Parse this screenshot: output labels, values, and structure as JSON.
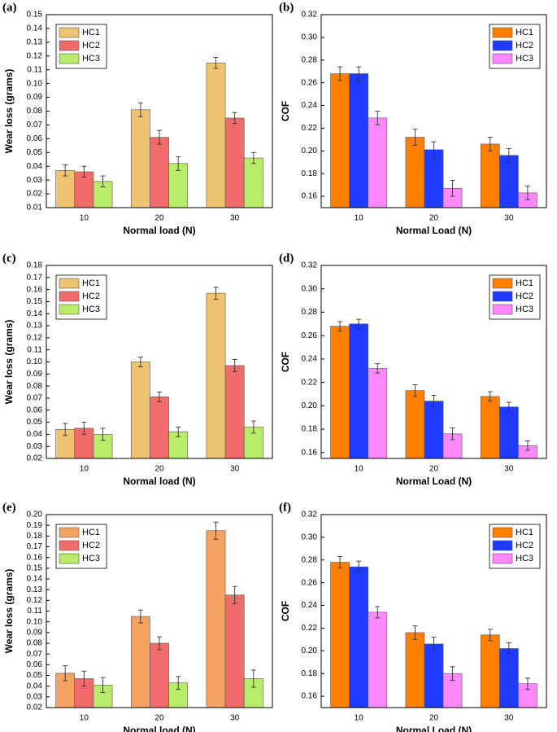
{
  "chart_data": [
    {
      "type": "bar",
      "label": "(a)",
      "xlabel": "Normal load (N)",
      "ylabel": "Wear loss (grams)",
      "legend": "upper left",
      "categories": [
        "10",
        "20",
        "30"
      ],
      "ylim": [
        0.01,
        0.15
      ],
      "yticks": [
        0.01,
        0.02,
        0.03,
        0.04,
        0.05,
        0.06,
        0.07,
        0.08,
        0.09,
        {
          "value": 0.1,
          "label": "0.10"
        },
        0.11,
        0.12,
        0.13,
        0.14,
        0.15
      ],
      "series": [
        {
          "name": "HC1",
          "color": "#eec472",
          "values": [
            0.037,
            0.081,
            0.115
          ],
          "errors": [
            0.004,
            0.005,
            0.004
          ]
        },
        {
          "name": "HC2",
          "color": "#f26b6b",
          "values": [
            0.036,
            0.061,
            0.075
          ],
          "errors": [
            0.004,
            0.005,
            0.004
          ]
        },
        {
          "name": "HC3",
          "color": "#b9ec6a",
          "values": [
            0.029,
            0.042,
            0.046
          ],
          "errors": [
            0.004,
            0.005,
            0.004
          ]
        }
      ]
    },
    {
      "type": "bar",
      "label": "(b)",
      "xlabel": "Normal Load (N)",
      "ylabel": "COF",
      "legend": "upper right",
      "categories": [
        "10",
        "20",
        "30"
      ],
      "ylim": [
        0.15,
        0.32
      ],
      "yticks": [
        0.16,
        0.18,
        {
          "value": 0.2,
          "label": "0.20"
        },
        0.22,
        0.24,
        0.26,
        0.28,
        {
          "value": 0.3,
          "label": "0.30"
        },
        0.32
      ],
      "series": [
        {
          "name": "HC1",
          "color": "#ff8000",
          "values": [
            0.268,
            0.212,
            0.206
          ],
          "errors": [
            0.006,
            0.007,
            0.006
          ]
        },
        {
          "name": "HC2",
          "color": "#1f3bff",
          "values": [
            0.268,
            0.201,
            0.196
          ],
          "errors": [
            0.006,
            0.007,
            0.006
          ]
        },
        {
          "name": "HC3",
          "color": "#ff88ff",
          "values": [
            0.229,
            0.167,
            0.163
          ],
          "errors": [
            0.006,
            0.007,
            0.006
          ]
        }
      ]
    },
    {
      "type": "bar",
      "label": "(c)",
      "xlabel": "Normal load (N)",
      "ylabel": "Wear loss (grams)",
      "legend": "upper left",
      "categories": [
        "10",
        "20",
        "30"
      ],
      "ylim": [
        0.02,
        0.18
      ],
      "yticks": [
        0.02,
        0.03,
        0.04,
        0.05,
        0.06,
        0.07,
        0.08,
        0.09,
        {
          "value": 0.1,
          "label": "0.10"
        },
        0.11,
        0.12,
        0.13,
        0.14,
        0.15,
        0.16,
        0.17,
        0.18
      ],
      "series": [
        {
          "name": "HC1",
          "color": "#eec472",
          "values": [
            0.044,
            0.1,
            0.157
          ],
          "errors": [
            0.005,
            0.004,
            0.005
          ]
        },
        {
          "name": "HC2",
          "color": "#f26b6b",
          "values": [
            0.045,
            0.071,
            0.097
          ],
          "errors": [
            0.005,
            0.004,
            0.005
          ]
        },
        {
          "name": "HC3",
          "color": "#b9ec6a",
          "values": [
            0.04,
            0.042,
            0.046
          ],
          "errors": [
            0.005,
            0.004,
            0.005
          ]
        }
      ]
    },
    {
      "type": "bar",
      "label": "(d)",
      "xlabel": "Normal Load (N)",
      "ylabel": "COF",
      "legend": "upper right",
      "categories": [
        "10",
        "20",
        "30"
      ],
      "ylim": [
        0.155,
        0.32
      ],
      "yticks": [
        0.16,
        0.18,
        {
          "value": 0.2,
          "label": "0.20"
        },
        0.22,
        0.24,
        0.26,
        0.28,
        {
          "value": 0.3,
          "label": "0.30"
        },
        0.32
      ],
      "series": [
        {
          "name": "HC1",
          "color": "#ff8000",
          "values": [
            0.268,
            0.213,
            0.208
          ],
          "errors": [
            0.004,
            0.005,
            0.004
          ]
        },
        {
          "name": "HC2",
          "color": "#1f3bff",
          "values": [
            0.27,
            0.204,
            0.199
          ],
          "errors": [
            0.004,
            0.005,
            0.004
          ]
        },
        {
          "name": "HC3",
          "color": "#ff88ff",
          "values": [
            0.232,
            0.176,
            0.166
          ],
          "errors": [
            0.004,
            0.005,
            0.004
          ]
        }
      ]
    },
    {
      "type": "bar",
      "label": "(e)",
      "xlabel": "Normal load (N)",
      "ylabel": "Wear loss (grams)",
      "legend": "upper left",
      "categories": [
        "10",
        "20",
        "30"
      ],
      "ylim": [
        0.02,
        0.2
      ],
      "yticks": [
        0.02,
        0.03,
        0.04,
        0.05,
        0.06,
        0.07,
        0.08,
        0.09,
        {
          "value": 0.1,
          "label": "0.10"
        },
        0.11,
        0.12,
        0.13,
        0.14,
        0.15,
        0.16,
        0.17,
        0.18,
        0.19,
        {
          "value": 0.2,
          "label": "0.20"
        }
      ],
      "series": [
        {
          "name": "HC1",
          "color": "#f5a263",
          "values": [
            0.052,
            0.105,
            0.185
          ],
          "errors": [
            0.007,
            0.006,
            0.008
          ]
        },
        {
          "name": "HC2",
          "color": "#f26b6b",
          "values": [
            0.047,
            0.08,
            0.125
          ],
          "errors": [
            0.007,
            0.006,
            0.008
          ]
        },
        {
          "name": "HC3",
          "color": "#b9ec6a",
          "values": [
            0.041,
            0.043,
            0.047
          ],
          "errors": [
            0.007,
            0.006,
            0.008
          ]
        }
      ]
    },
    {
      "type": "bar",
      "label": "(f)",
      "xlabel": "Normal Load (N)",
      "ylabel": "COF",
      "legend": "upper right",
      "categories": [
        "10",
        "20",
        "30"
      ],
      "ylim": [
        0.15,
        0.32
      ],
      "yticks": [
        0.16,
        0.18,
        {
          "value": 0.2,
          "label": "0.20"
        },
        0.22,
        0.24,
        0.26,
        0.28,
        {
          "value": 0.3,
          "label": "0.30"
        },
        0.32
      ],
      "series": [
        {
          "name": "HC1",
          "color": "#ff8000",
          "values": [
            0.278,
            0.216,
            0.214
          ],
          "errors": [
            0.005,
            0.006,
            0.005
          ]
        },
        {
          "name": "HC2",
          "color": "#1f3bff",
          "values": [
            0.274,
            0.206,
            0.202
          ],
          "errors": [
            0.005,
            0.006,
            0.005
          ]
        },
        {
          "name": "HC3",
          "color": "#ff88ff",
          "values": [
            0.234,
            0.18,
            0.171
          ],
          "errors": [
            0.005,
            0.006,
            0.005
          ]
        }
      ]
    }
  ]
}
